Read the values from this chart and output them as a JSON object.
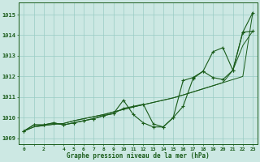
{
  "title": "Graphe pression niveau de la mer (hPa)",
  "bg_color": "#cce8e3",
  "grid_color": "#99ccc4",
  "line_color": "#1a5c1a",
  "xlim": [
    -0.5,
    23.5
  ],
  "ylim": [
    1008.7,
    1015.6
  ],
  "yticks": [
    1009,
    1010,
    1011,
    1012,
    1013,
    1014,
    1015
  ],
  "xticks": [
    0,
    1,
    2,
    3,
    4,
    5,
    6,
    7,
    8,
    9,
    10,
    11,
    12,
    13,
    14,
    15,
    16,
    17,
    18,
    19,
    20,
    21,
    22,
    23
  ],
  "xtick_labels": [
    "0",
    "",
    "2",
    "",
    "4",
    "5",
    "6",
    "7",
    "8",
    "9",
    "10",
    "11",
    "12",
    "13",
    "14",
    "15",
    "16",
    "17",
    "18",
    "19",
    "20",
    "21",
    "22",
    "23"
  ],
  "series_trend1": [
    1009.35,
    1009.55,
    1009.62,
    1009.68,
    1009.72,
    1009.85,
    1009.95,
    1010.05,
    1010.15,
    1010.28,
    1010.4,
    1010.52,
    1010.63,
    1010.74,
    1010.85,
    1010.96,
    1011.1,
    1011.25,
    1011.4,
    1011.55,
    1011.7,
    1011.85,
    1012.0,
    1015.1
  ],
  "series_trend2": [
    1009.35,
    1009.55,
    1009.62,
    1009.68,
    1009.72,
    1009.85,
    1009.95,
    1010.05,
    1010.15,
    1010.28,
    1010.4,
    1010.52,
    1010.63,
    1010.74,
    1010.85,
    1010.96,
    1011.1,
    1011.25,
    1011.4,
    1011.55,
    1011.7,
    1012.3,
    1013.5,
    1014.2
  ],
  "series_main": [
    1009.35,
    1009.65,
    1009.65,
    1009.75,
    1009.65,
    1009.75,
    1009.85,
    1009.95,
    1010.1,
    1010.2,
    1010.85,
    1010.15,
    1009.75,
    1009.55,
    1009.55,
    1010.0,
    1010.55,
    1011.9,
    1012.25,
    1013.2,
    1013.4,
    1012.3,
    1014.15,
    1015.1
  ],
  "series_alt": [
    1009.35,
    1009.65,
    1009.65,
    1009.75,
    1009.65,
    1009.75,
    1009.85,
    1009.95,
    1010.1,
    1010.2,
    1010.45,
    1010.55,
    1010.65,
    1009.7,
    1009.55,
    1010.0,
    1011.8,
    1011.95,
    1012.25,
    1011.95,
    1011.85,
    1012.3,
    1014.15,
    1014.2
  ]
}
